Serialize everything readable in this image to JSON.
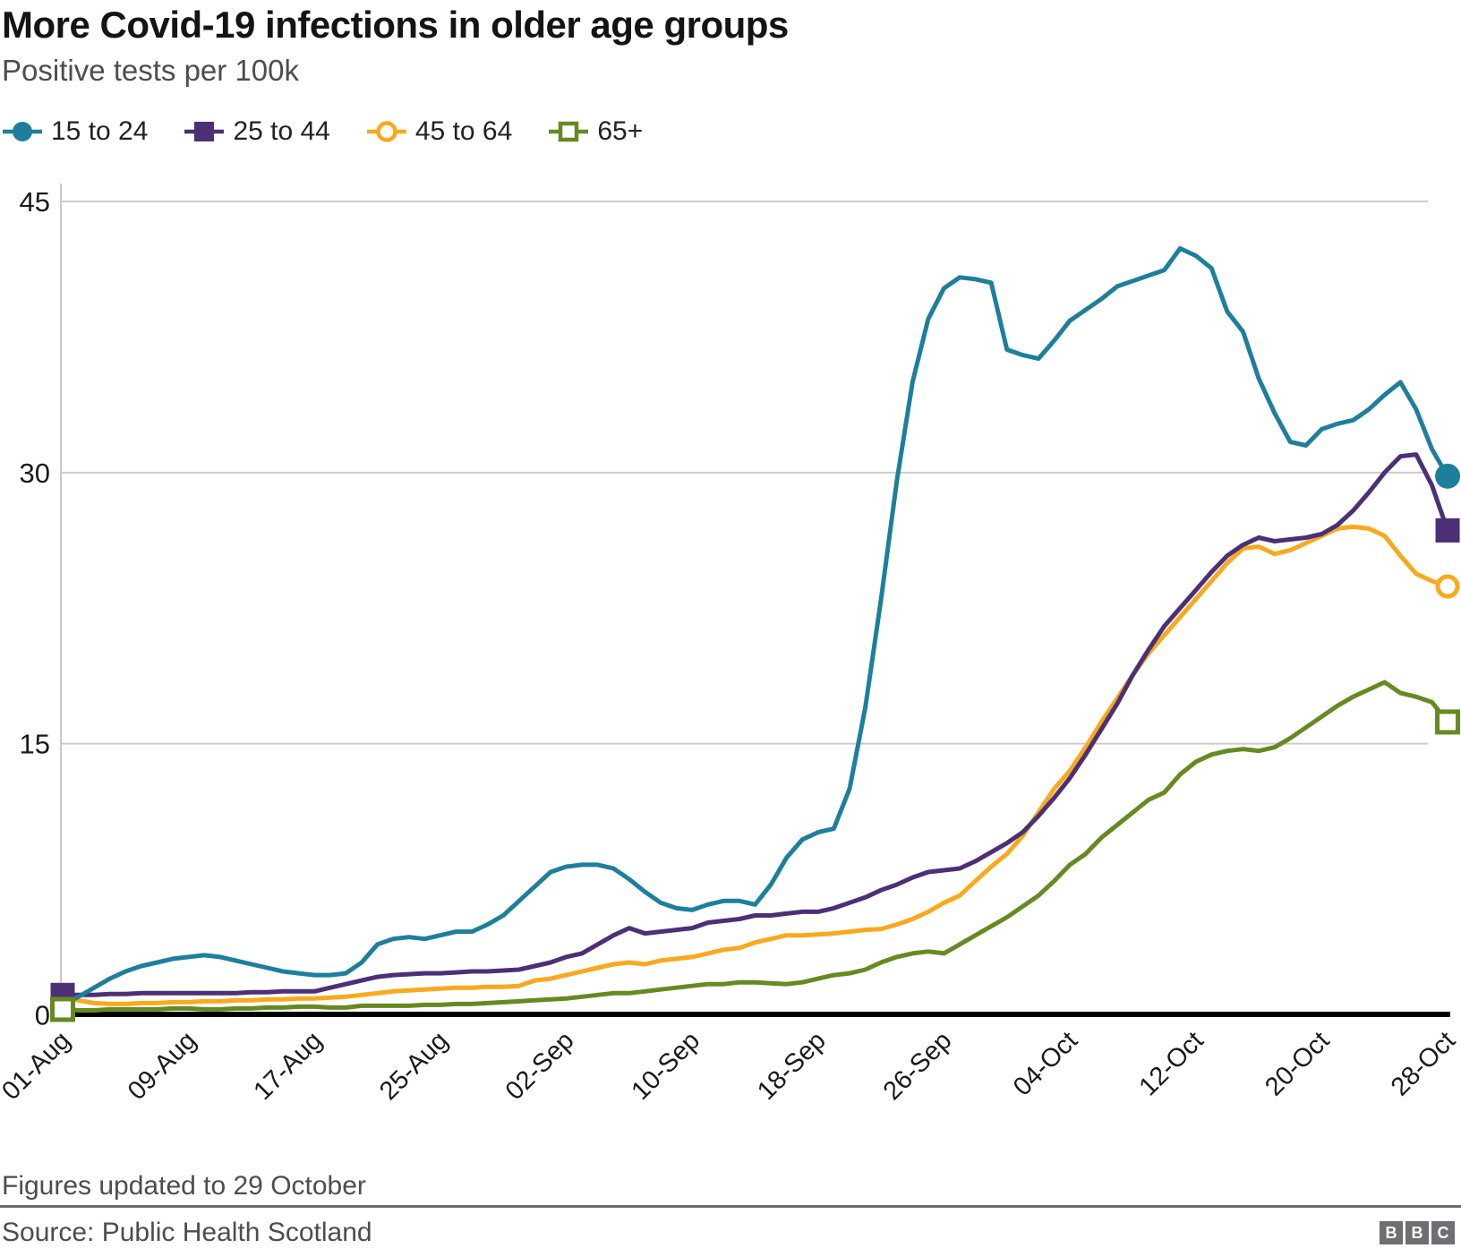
{
  "header": {
    "title": "More Covid-19 infections in older age groups",
    "subtitle": "Positive tests per 100k"
  },
  "footer": {
    "note": "Figures updated to 29 October",
    "source": "Source: Public Health Scotland",
    "logo_letters": [
      "B",
      "B",
      "C"
    ]
  },
  "colors": {
    "teal": "#1E7F9C",
    "purple": "#4C2F76",
    "orange": "#F9A91E",
    "green": "#668A21",
    "gridline": "#CCCCCC",
    "axis_line": "#C8C8C8",
    "zero_line": "#000000",
    "tick_text": "#1A1A1A",
    "footer_text": "#4D4D4D",
    "bbc_gray": "#6E6E73"
  },
  "chart_data": {
    "type": "line",
    "title": "More Covid-19 infections in older age groups",
    "subtitle": "Positive tests per 100k",
    "xlabel": "",
    "ylabel": "Positive tests per 100k",
    "ylim": [
      0,
      45
    ],
    "yticks": [
      0,
      15,
      30,
      45
    ],
    "grid": "horizontal gridlines at 15, 30, 45",
    "legend_position": "top",
    "x_unit": "daily values, 01-Aug to 28-Oct",
    "x_tick_days": [
      0,
      8,
      16,
      24,
      32,
      40,
      48,
      56,
      64,
      72,
      80,
      88
    ],
    "x_tick_labels": [
      "01-Aug",
      "09-Aug",
      "17-Aug",
      "25-Aug",
      "02-Sep",
      "10-Sep",
      "18-Sep",
      "26-Sep",
      "04-Oct",
      "12-Oct",
      "20-Oct",
      "28-Oct"
    ],
    "series": [
      {
        "name": "15 to 24",
        "color": "#1E7F9C",
        "marker": "filled-circle",
        "values": [
          0.6,
          1.0,
          1.5,
          2.0,
          2.4,
          2.7,
          2.9,
          3.1,
          3.2,
          3.3,
          3.2,
          3.0,
          2.8,
          2.6,
          2.4,
          2.3,
          2.2,
          2.2,
          2.3,
          2.9,
          3.9,
          4.2,
          4.3,
          4.2,
          4.4,
          4.6,
          4.6,
          5.0,
          5.5,
          6.3,
          7.1,
          7.9,
          8.2,
          8.3,
          8.3,
          8.1,
          7.5,
          6.8,
          6.2,
          5.9,
          5.8,
          6.1,
          6.3,
          6.3,
          6.1,
          7.2,
          8.7,
          9.7,
          10.1,
          10.3,
          12.5,
          17.0,
          23.0,
          29.5,
          35.0,
          38.5,
          40.2,
          40.8,
          40.7,
          40.5,
          36.8,
          36.5,
          36.3,
          37.3,
          38.4,
          39.0,
          39.6,
          40.3,
          40.6,
          40.9,
          41.2,
          42.4,
          42.0,
          41.3,
          38.9,
          37.8,
          35.2,
          33.3,
          31.7,
          31.5,
          32.4,
          32.7,
          32.9,
          33.5,
          34.3,
          35.0,
          33.5,
          31.3,
          29.8
        ]
      },
      {
        "name": "25 to 44",
        "color": "#4C2F76",
        "marker": "filled-square",
        "values": [
          1.1,
          1.1,
          1.1,
          1.15,
          1.15,
          1.2,
          1.2,
          1.2,
          1.2,
          1.2,
          1.2,
          1.2,
          1.25,
          1.25,
          1.3,
          1.3,
          1.3,
          1.5,
          1.7,
          1.9,
          2.1,
          2.2,
          2.25,
          2.3,
          2.3,
          2.35,
          2.4,
          2.4,
          2.45,
          2.5,
          2.7,
          2.9,
          3.2,
          3.4,
          3.9,
          4.4,
          4.8,
          4.5,
          4.6,
          4.7,
          4.8,
          5.1,
          5.2,
          5.3,
          5.5,
          5.5,
          5.6,
          5.7,
          5.7,
          5.9,
          6.2,
          6.5,
          6.9,
          7.2,
          7.6,
          7.9,
          8.0,
          8.1,
          8.5,
          9.0,
          9.5,
          10.1,
          11.0,
          12.0,
          13.1,
          14.4,
          15.8,
          17.2,
          18.8,
          20.2,
          21.5,
          22.5,
          23.5,
          24.5,
          25.4,
          26.0,
          26.4,
          26.2,
          26.3,
          26.4,
          26.6,
          27.1,
          27.9,
          28.9,
          30.0,
          30.9,
          31.0,
          29.3,
          26.8
        ]
      },
      {
        "name": "45 to 64",
        "color": "#F9A91E",
        "marker": "open-circle",
        "values": [
          1.0,
          0.8,
          0.65,
          0.6,
          0.6,
          0.65,
          0.65,
          0.7,
          0.7,
          0.75,
          0.75,
          0.8,
          0.8,
          0.85,
          0.85,
          0.9,
          0.9,
          0.95,
          1.0,
          1.1,
          1.2,
          1.3,
          1.35,
          1.4,
          1.45,
          1.5,
          1.5,
          1.55,
          1.55,
          1.6,
          1.9,
          2.0,
          2.2,
          2.4,
          2.6,
          2.8,
          2.9,
          2.8,
          3.0,
          3.1,
          3.2,
          3.4,
          3.6,
          3.7,
          4.0,
          4.2,
          4.4,
          4.4,
          4.45,
          4.5,
          4.6,
          4.7,
          4.75,
          5.0,
          5.3,
          5.7,
          6.2,
          6.6,
          7.4,
          8.2,
          8.9,
          9.9,
          11.2,
          12.5,
          13.5,
          14.8,
          16.2,
          17.5,
          18.8,
          20.0,
          21.0,
          22.0,
          23.0,
          24.0,
          25.0,
          25.8,
          25.9,
          25.5,
          25.7,
          26.1,
          26.5,
          26.9,
          27.0,
          26.9,
          26.5,
          25.4,
          24.4,
          24.0,
          23.7
        ]
      },
      {
        "name": "65+",
        "color": "#668A21",
        "marker": "open-square",
        "values": [
          0.3,
          0.25,
          0.25,
          0.3,
          0.3,
          0.3,
          0.3,
          0.35,
          0.35,
          0.3,
          0.3,
          0.35,
          0.35,
          0.4,
          0.4,
          0.45,
          0.45,
          0.4,
          0.4,
          0.5,
          0.5,
          0.5,
          0.5,
          0.55,
          0.55,
          0.6,
          0.6,
          0.65,
          0.7,
          0.75,
          0.8,
          0.85,
          0.9,
          1.0,
          1.1,
          1.2,
          1.2,
          1.3,
          1.4,
          1.5,
          1.6,
          1.7,
          1.7,
          1.8,
          1.8,
          1.75,
          1.7,
          1.8,
          2.0,
          2.2,
          2.3,
          2.5,
          2.9,
          3.2,
          3.4,
          3.5,
          3.4,
          3.9,
          4.4,
          4.9,
          5.4,
          6.0,
          6.6,
          7.4,
          8.3,
          8.9,
          9.8,
          10.5,
          11.2,
          11.9,
          12.3,
          13.3,
          14.0,
          14.4,
          14.6,
          14.7,
          14.6,
          14.8,
          15.3,
          15.9,
          16.5,
          17.1,
          17.6,
          18.0,
          18.4,
          17.8,
          17.6,
          17.3,
          16.2
        ]
      }
    ]
  }
}
